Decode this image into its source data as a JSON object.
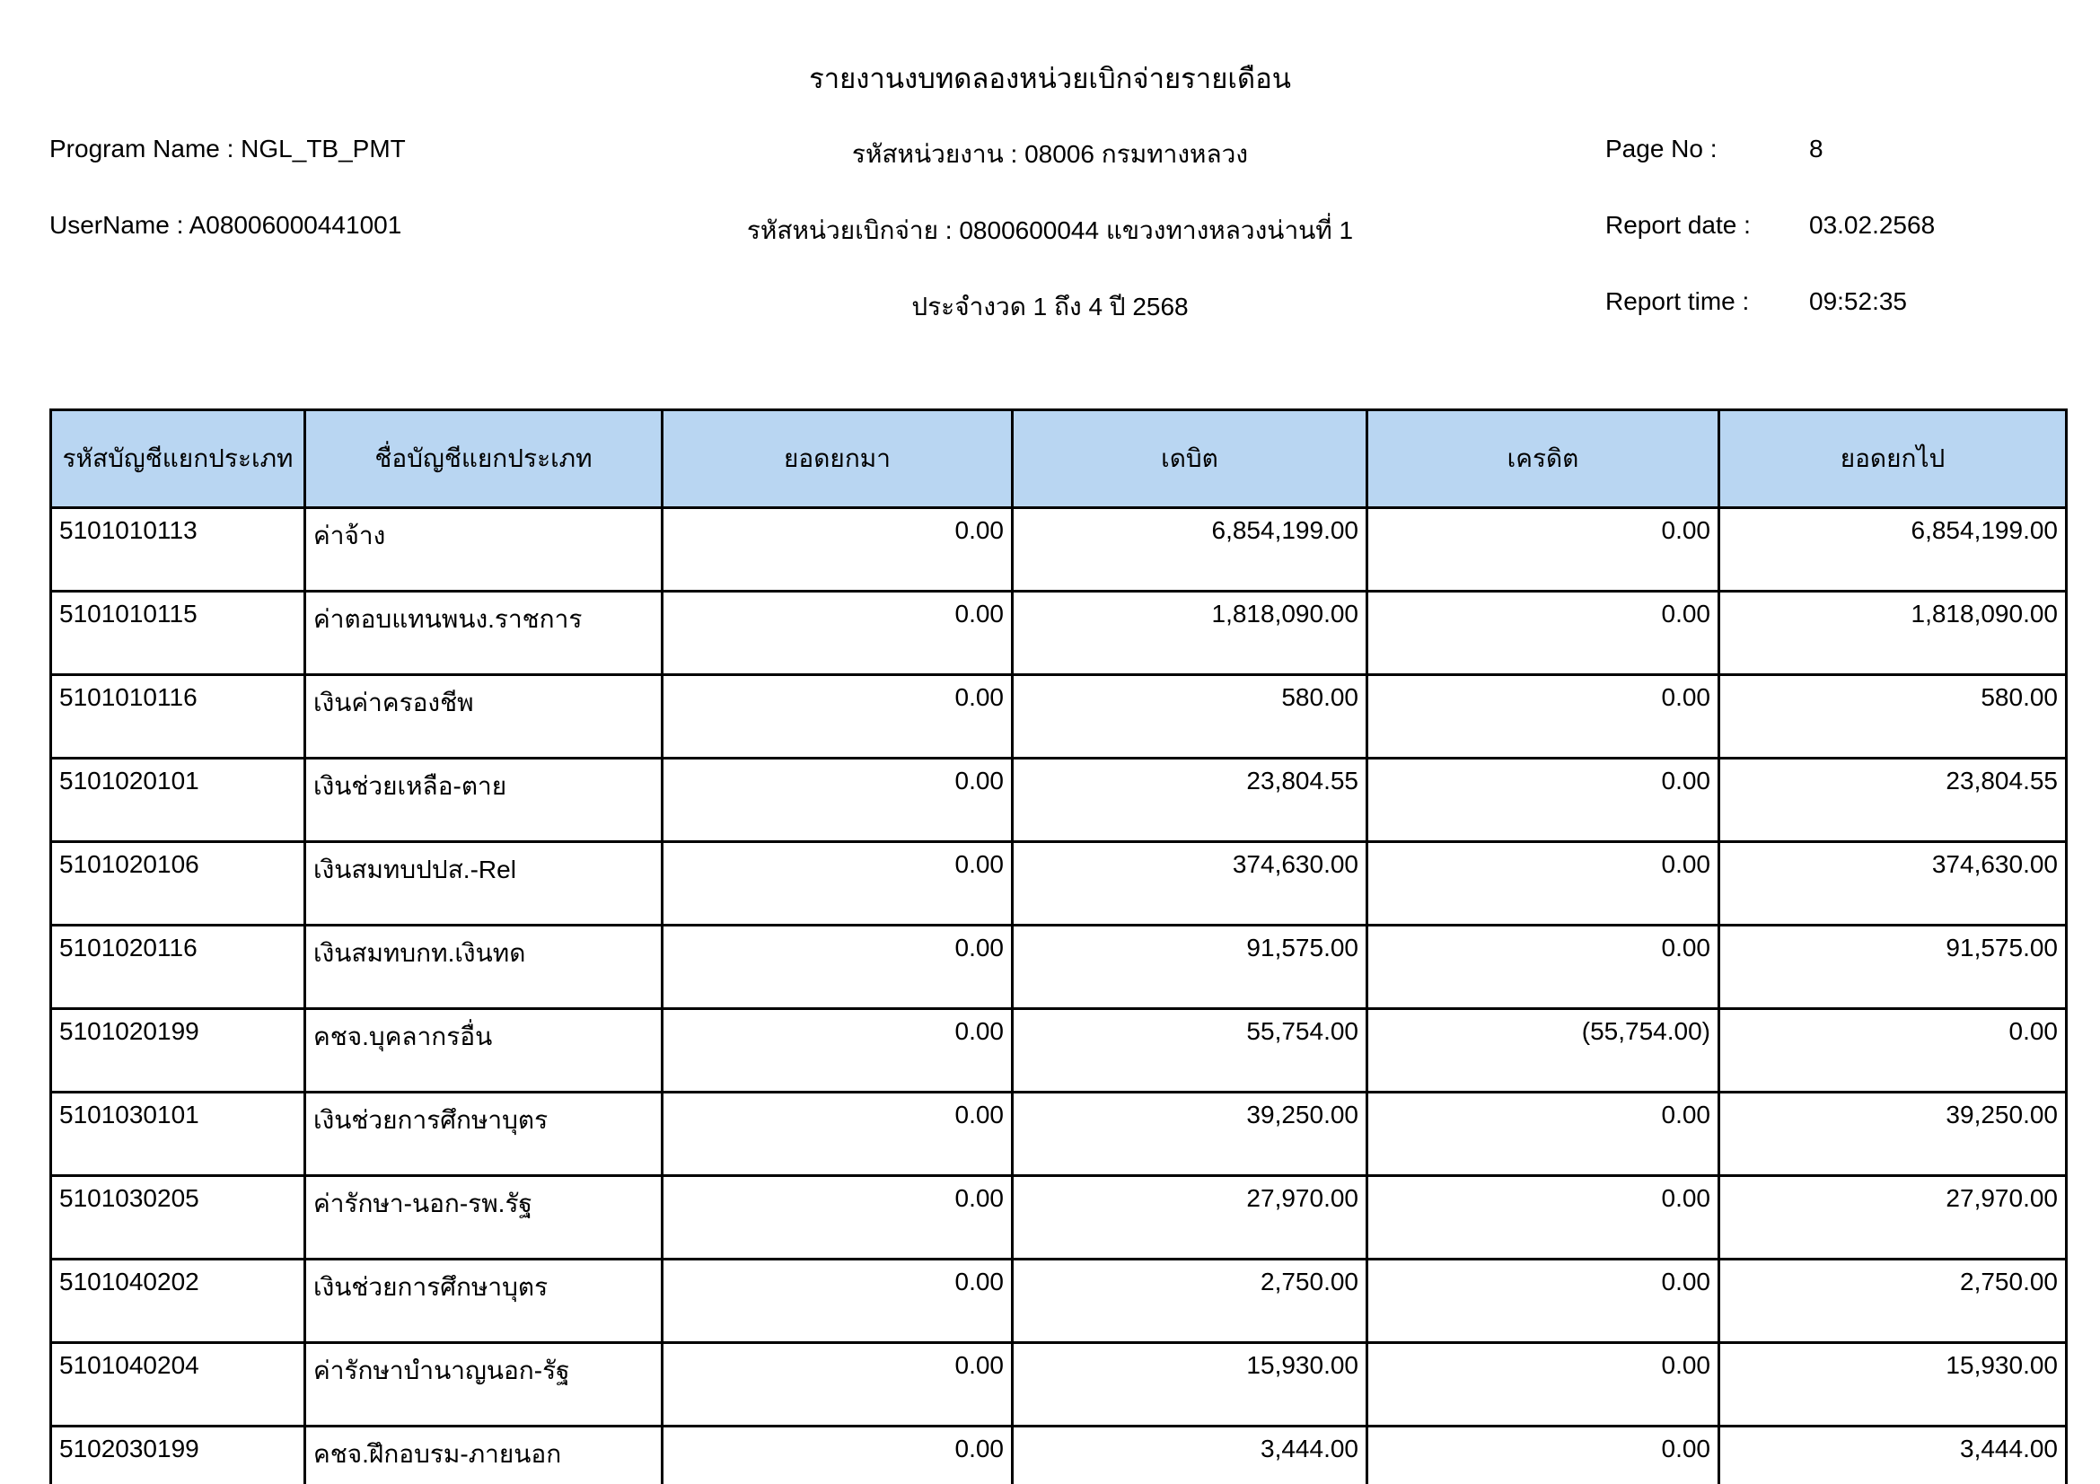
{
  "report": {
    "title": "รายงานงบทดลองหน่วยเบิกจ่ายรายเดือน",
    "program_name_label": "Program Name : ",
    "program_name": "NGL_TB_PMT",
    "username_label": "UserName : ",
    "username": "A08006000441001",
    "agency_line": "รหัสหน่วยงาน : 08006 กรมทางหลวง",
    "disbursement_unit_line": "รหัสหน่วยเบิกจ่าย : 0800600044 แขวงทางหลวงน่านที่ 1",
    "period_line": "ประจำงวด 1 ถึง 4 ปี 2568",
    "page_no_label": "Page No :",
    "page_no": "8",
    "report_date_label": "Report date :",
    "report_date": "03.02.2568",
    "report_time_label": "Report time :",
    "report_time": "09:52:35"
  },
  "table": {
    "columns": [
      "รหัสบัญชีแยกประเภท",
      "ชื่อบัญชีแยกประเภท",
      "ยอดยกมา",
      "เดบิต",
      "เครดิต",
      "ยอดยกไป"
    ],
    "column_keys": [
      "account-code",
      "account-name",
      "balance-brought-forward",
      "debit",
      "credit",
      "balance-carried-forward"
    ],
    "rows": [
      [
        "5101010113",
        "ค่าจ้าง",
        "0.00",
        "6,854,199.00",
        "0.00",
        "6,854,199.00"
      ],
      [
        "5101010115",
        "ค่าตอบแทนพนง.ราชการ",
        "0.00",
        "1,818,090.00",
        "0.00",
        "1,818,090.00"
      ],
      [
        "5101010116",
        "เงินค่าครองชีพ",
        "0.00",
        "580.00",
        "0.00",
        "580.00"
      ],
      [
        "5101020101",
        "เงินช่วยเหลือ-ตาย",
        "0.00",
        "23,804.55",
        "0.00",
        "23,804.55"
      ],
      [
        "5101020106",
        "เงินสมทบปปส.-Rel",
        "0.00",
        "374,630.00",
        "0.00",
        "374,630.00"
      ],
      [
        "5101020116",
        "เงินสมทบกท.เงินทด",
        "0.00",
        "91,575.00",
        "0.00",
        "91,575.00"
      ],
      [
        "5101020199",
        "คชจ.บุคลากรอื่น",
        "0.00",
        "55,754.00",
        "(55,754.00)",
        "0.00"
      ],
      [
        "5101030101",
        "เงินช่วยการศึกษาบุตร",
        "0.00",
        "39,250.00",
        "0.00",
        "39,250.00"
      ],
      [
        "5101030205",
        "ค่ารักษา-นอก-รพ.รัฐ",
        "0.00",
        "27,970.00",
        "0.00",
        "27,970.00"
      ],
      [
        "5101040202",
        "เงินช่วยการศึกษาบุตร",
        "0.00",
        "2,750.00",
        "0.00",
        "2,750.00"
      ],
      [
        "5101040204",
        "ค่ารักษาบำนาญนอก-รัฐ",
        "0.00",
        "15,930.00",
        "0.00",
        "15,930.00"
      ],
      [
        "5102030199",
        "คชจ.ฝึกอบรม-ภายนอก",
        "0.00",
        "3,444.00",
        "0.00",
        "3,444.00"
      ]
    ]
  },
  "colors": {
    "header_bg": "#b9d6f2",
    "border": "#000000"
  }
}
